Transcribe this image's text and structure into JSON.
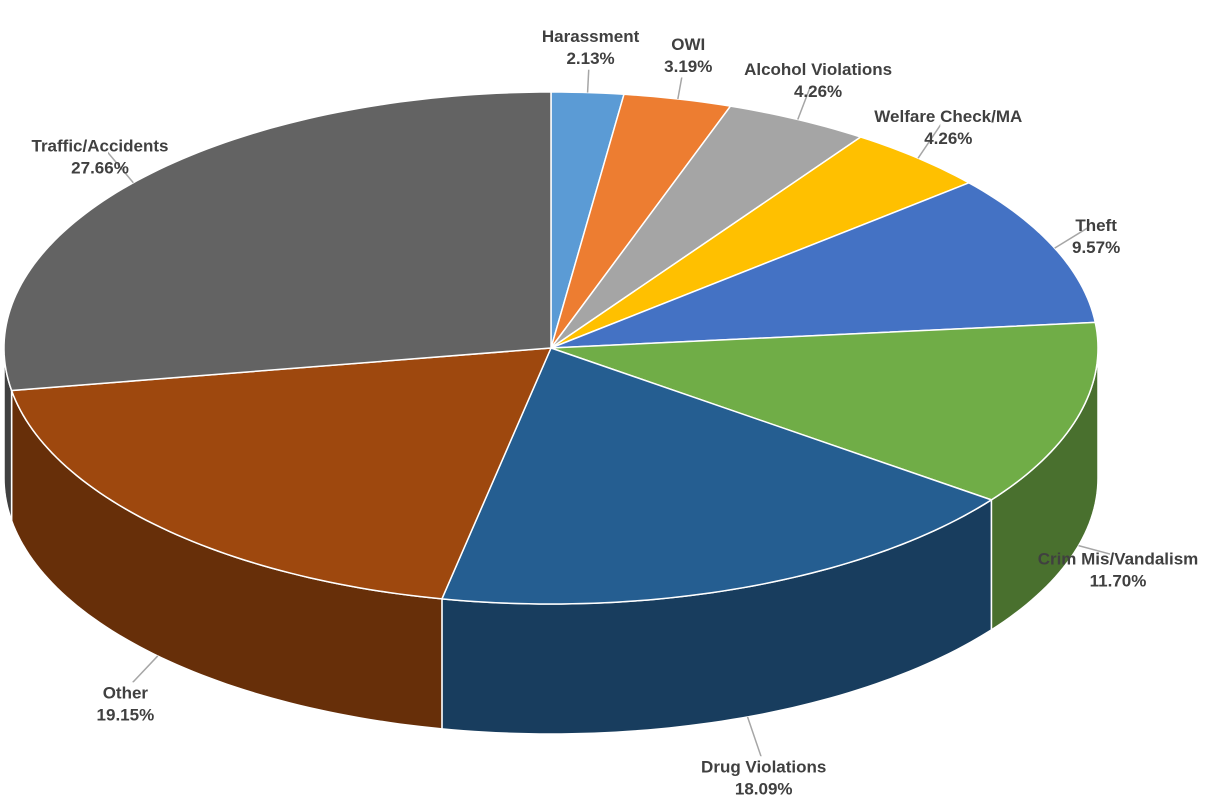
{
  "chart_data": {
    "type": "pie3d",
    "categories": [
      "Harassment",
      "OWI",
      "Alcohol Violations",
      "Welfare Check/MA",
      "Theft",
      "Crim Mis/Vandalism",
      "Drug Violations",
      "Other",
      "Traffic/Accidents"
    ],
    "values": [
      2.13,
      3.19,
      4.26,
      4.26,
      9.57,
      11.7,
      18.09,
      19.15,
      27.66
    ],
    "value_labels": [
      "2.13%",
      "3.19%",
      "4.26%",
      "4.26%",
      "9.57%",
      "11.70%",
      "18.09%",
      "19.15%",
      "27.66%"
    ],
    "colors": [
      "#5b9bd5",
      "#ed7d31",
      "#a5a5a5",
      "#ffc000",
      "#4472c4",
      "#70ad47",
      "#255e91",
      "#9e480e",
      "#636363"
    ]
  }
}
